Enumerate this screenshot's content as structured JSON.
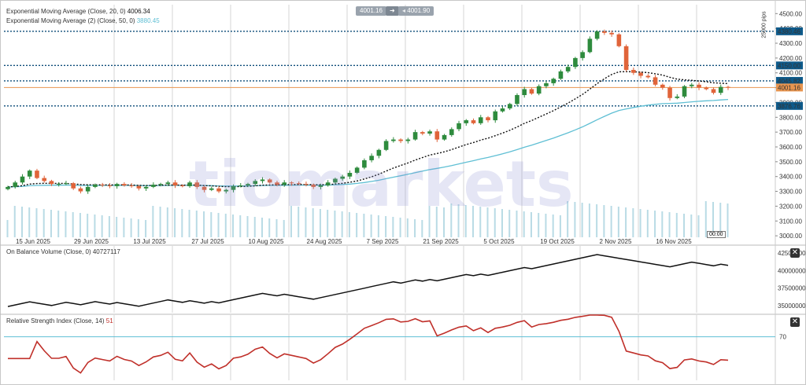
{
  "top_bar": {
    "bid": "4001.16",
    "ask": "4001.90"
  },
  "main_pane": {
    "indicator_ema20": {
      "label": "Exponential Moving Average (Close, 20, 0)",
      "value": "4006.34"
    },
    "indicator_ema50": {
      "label": "Exponential Moving Average (2) (Close, 50, 0)",
      "value": "3880.45"
    },
    "pips_label": "25000 pips",
    "time_badge": "00:00"
  },
  "obv_pane": {
    "label": "On Balance Volume (Close, 0)",
    "value": "40727117",
    "ticks": [
      "42500000",
      "40000000",
      "37500000",
      "35000000"
    ]
  },
  "rsi_pane": {
    "label": "Relative Strength Index (Close, 14)",
    "value": "51",
    "level": "70"
  },
  "watermark": {
    "brand": "tiomarkets"
  },
  "colors": {
    "up": "#2e8b3d",
    "down": "#e0643a",
    "ema20": "#111111",
    "ema50": "#5fbfd4",
    "obv": "#111111",
    "rsi": "#c0302a",
    "hline": "#0e4d7a",
    "price_line": "#e8954f",
    "label_bg": "#0e5a8a"
  },
  "chart_data": {
    "type": "candlestick",
    "x_labels": [
      "15 Jun 2025",
      "29 Jun 2025",
      "13 Jul 2025",
      "27 Jul 2025",
      "10 Aug 2025",
      "24 Aug 2025",
      "7 Sep 2025",
      "21 Sep 2025",
      "5 Oct 2025",
      "19 Oct 2025",
      "2 Nov 2025",
      "16 Nov 2025"
    ],
    "y_ticks": [
      "4500.00",
      "4400.00",
      "4300.00",
      "4200.00",
      "4100.00",
      "4000.00",
      "3900.00",
      "3800.00",
      "3700.00",
      "3600.00",
      "3500.00",
      "3400.00",
      "3300.00",
      "3200.00",
      "3100.00",
      "3000.00"
    ],
    "ylim": [
      2990,
      4560
    ],
    "horizontal_levels": [
      {
        "value": "4380.46"
      },
      {
        "value": "4150.00"
      },
      {
        "value": "4045.82"
      },
      {
        "value": "4001.16",
        "current": true
      },
      {
        "value": "3876.76"
      }
    ],
    "close": [
      3330,
      3360,
      3400,
      3440,
      3390,
      3370,
      3350,
      3350,
      3355,
      3320,
      3300,
      3330,
      3345,
      3340,
      3335,
      3350,
      3340,
      3335,
      3320,
      3330,
      3345,
      3350,
      3360,
      3340,
      3335,
      3360,
      3330,
      3310,
      3320,
      3300,
      3310,
      3335,
      3340,
      3350,
      3370,
      3380,
      3360,
      3345,
      3360,
      3355,
      3350,
      3345,
      3330,
      3340,
      3360,
      3385,
      3400,
      3425,
      3460,
      3510,
      3540,
      3580,
      3640,
      3650,
      3640,
      3650,
      3700,
      3690,
      3705,
      3650,
      3680,
      3720,
      3760,
      3780,
      3760,
      3800,
      3780,
      3840,
      3860,
      3890,
      3950,
      3990,
      3960,
      4010,
      4030,
      4060,
      4110,
      4140,
      4200,
      4240,
      4330,
      4380,
      4370,
      4360,
      4280,
      4120,
      4100,
      4080,
      4070,
      4020,
      4000,
      3930,
      3940,
      4010,
      4020,
      4000,
      3990,
      3965,
      4005,
      4001
    ],
    "ema20_last": 4006.34,
    "ema50_last": 3880.45,
    "volume_series": "present",
    "sub_series": [
      {
        "name": "On Balance Volume (Close, 0)",
        "last": 40727117,
        "ylim": [
          34000000,
          43500000
        ]
      },
      {
        "name": "Relative Strength Index (Close, 14)",
        "last": 51,
        "ylim": [
          30,
          90
        ],
        "level": 70
      }
    ]
  }
}
